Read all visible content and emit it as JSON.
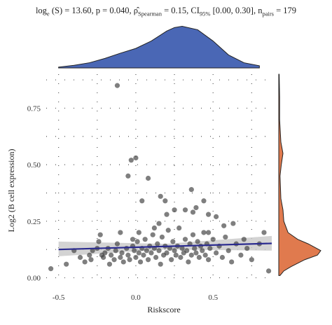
{
  "stats": {
    "log_label": "log",
    "log_sub": "e",
    "S_part": " (S) = 13.60, p = 0.040, ",
    "rho_sub": "Spearman",
    "rho_val": " = 0.15, CI",
    "ci_sub": "95%",
    "ci_val": " [0.00, 0.30], n",
    "n_sub": "pairs",
    "n_val": " = 179"
  },
  "chart_data": {
    "type": "scatter",
    "title": "",
    "xlabel": "Riskscore",
    "ylabel": "Log2 (B cell expression)",
    "xlim": [
      -0.58,
      0.88
    ],
    "ylim": [
      -0.02,
      0.9
    ],
    "x_ticks": [
      -0.5,
      0.0,
      0.5
    ],
    "x_tick_labels": [
      "-0.5",
      "0.0",
      "0.5"
    ],
    "y_ticks": [
      0.0,
      0.25,
      0.5,
      0.75
    ],
    "y_tick_labels": [
      "0.00",
      "0.25",
      "0.50",
      "0.75"
    ],
    "grid": true,
    "regression": {
      "x": [
        -0.5,
        0.88
      ],
      "y": [
        0.125,
        0.152
      ],
      "ci_low_left": 0.095,
      "ci_high_left": 0.16,
      "ci_low_mid": 0.125,
      "ci_high_mid": 0.15,
      "ci_low_right": 0.12,
      "ci_high_right": 0.185
    },
    "marginal_x_density": {
      "x": [
        -0.5,
        -0.4,
        -0.3,
        -0.2,
        -0.1,
        0.0,
        0.1,
        0.2,
        0.25,
        0.3,
        0.4,
        0.5,
        0.6,
        0.7,
        0.8
      ],
      "y": [
        0.02,
        0.06,
        0.12,
        0.22,
        0.34,
        0.45,
        0.62,
        0.85,
        0.93,
        0.96,
        0.88,
        0.62,
        0.3,
        0.12,
        0.05
      ]
    },
    "marginal_y_density": {
      "y": [
        0.9,
        0.8,
        0.7,
        0.6,
        0.55,
        0.5,
        0.45,
        0.4,
        0.35,
        0.3,
        0.25,
        0.2,
        0.17,
        0.15,
        0.12,
        0.1,
        0.08,
        0.05,
        0.03,
        0.01
      ],
      "d": [
        0.01,
        0.02,
        0.02,
        0.05,
        0.1,
        0.06,
        0.03,
        0.04,
        0.05,
        0.1,
        0.12,
        0.22,
        0.45,
        0.7,
        1.0,
        0.92,
        0.62,
        0.3,
        0.12,
        0.03
      ]
    },
    "points": [
      {
        "x": -0.55,
        "y": 0.04
      },
      {
        "x": -0.45,
        "y": 0.06
      },
      {
        "x": -0.4,
        "y": 0.12
      },
      {
        "x": -0.36,
        "y": 0.09
      },
      {
        "x": -0.33,
        "y": 0.07
      },
      {
        "x": -0.3,
        "y": 0.1
      },
      {
        "x": -0.29,
        "y": 0.08
      },
      {
        "x": -0.25,
        "y": 0.13
      },
      {
        "x": -0.24,
        "y": 0.16
      },
      {
        "x": -0.22,
        "y": 0.1
      },
      {
        "x": -0.21,
        "y": 0.09
      },
      {
        "x": -0.2,
        "y": 0.11
      },
      {
        "x": -0.18,
        "y": 0.13
      },
      {
        "x": -0.17,
        "y": 0.06
      },
      {
        "x": -0.16,
        "y": 0.1
      },
      {
        "x": -0.14,
        "y": 0.08
      },
      {
        "x": -0.13,
        "y": 0.12
      },
      {
        "x": -0.12,
        "y": 0.15
      },
      {
        "x": -0.1,
        "y": 0.09
      },
      {
        "x": -0.09,
        "y": 0.11
      },
      {
        "x": -0.08,
        "y": 0.07
      },
      {
        "x": -0.06,
        "y": 0.13
      },
      {
        "x": -0.05,
        "y": 0.1
      },
      {
        "x": -0.04,
        "y": 0.08
      },
      {
        "x": -0.02,
        "y": 0.14
      },
      {
        "x": -0.01,
        "y": 0.12
      },
      {
        "x": 0.0,
        "y": 0.09
      },
      {
        "x": 0.01,
        "y": 0.16
      },
      {
        "x": 0.02,
        "y": 0.11
      },
      {
        "x": 0.03,
        "y": 0.07
      },
      {
        "x": 0.04,
        "y": 0.13
      },
      {
        "x": 0.05,
        "y": 0.1
      },
      {
        "x": 0.06,
        "y": 0.17
      },
      {
        "x": 0.07,
        "y": 0.12
      },
      {
        "x": 0.08,
        "y": 0.08
      },
      {
        "x": 0.09,
        "y": 0.14
      },
      {
        "x": 0.1,
        "y": 0.11
      },
      {
        "x": 0.11,
        "y": 0.19
      },
      {
        "x": 0.12,
        "y": 0.13
      },
      {
        "x": 0.13,
        "y": 0.09
      },
      {
        "x": 0.14,
        "y": 0.15
      },
      {
        "x": 0.15,
        "y": 0.12
      },
      {
        "x": 0.16,
        "y": 0.06
      },
      {
        "x": 0.17,
        "y": 0.18
      },
      {
        "x": 0.18,
        "y": 0.1
      },
      {
        "x": 0.19,
        "y": 0.14
      },
      {
        "x": 0.2,
        "y": 0.11
      },
      {
        "x": 0.21,
        "y": 0.21
      },
      {
        "x": 0.22,
        "y": 0.13
      },
      {
        "x": 0.23,
        "y": 0.08
      },
      {
        "x": 0.24,
        "y": 0.16
      },
      {
        "x": 0.25,
        "y": 0.12
      },
      {
        "x": 0.26,
        "y": 0.1
      },
      {
        "x": 0.27,
        "y": 0.14
      },
      {
        "x": 0.28,
        "y": 0.22
      },
      {
        "x": 0.29,
        "y": 0.09
      },
      {
        "x": 0.3,
        "y": 0.13
      },
      {
        "x": 0.31,
        "y": 0.11
      },
      {
        "x": 0.32,
        "y": 0.17
      },
      {
        "x": 0.33,
        "y": 0.12
      },
      {
        "x": 0.34,
        "y": 0.07
      },
      {
        "x": 0.35,
        "y": 0.15
      },
      {
        "x": 0.36,
        "y": 0.1
      },
      {
        "x": 0.37,
        "y": 0.19
      },
      {
        "x": 0.38,
        "y": 0.13
      },
      {
        "x": 0.39,
        "y": 0.11
      },
      {
        "x": 0.4,
        "y": 0.16
      },
      {
        "x": 0.41,
        "y": 0.09
      },
      {
        "x": 0.42,
        "y": 0.14
      },
      {
        "x": 0.43,
        "y": 0.12
      },
      {
        "x": 0.44,
        "y": 0.2
      },
      {
        "x": 0.45,
        "y": 0.1
      },
      {
        "x": 0.46,
        "y": 0.15
      },
      {
        "x": 0.47,
        "y": 0.08
      },
      {
        "x": 0.48,
        "y": 0.13
      },
      {
        "x": 0.5,
        "y": 0.17
      },
      {
        "x": 0.52,
        "y": 0.11
      },
      {
        "x": 0.54,
        "y": 0.14
      },
      {
        "x": 0.56,
        "y": 0.09
      },
      {
        "x": 0.58,
        "y": 0.18
      },
      {
        "x": 0.6,
        "y": 0.12
      },
      {
        "x": 0.62,
        "y": 0.07
      },
      {
        "x": 0.65,
        "y": 0.15
      },
      {
        "x": 0.68,
        "y": 0.1
      },
      {
        "x": 0.72,
        "y": 0.13
      },
      {
        "x": 0.75,
        "y": 0.08
      },
      {
        "x": 0.8,
        "y": 0.15
      },
      {
        "x": 0.83,
        "y": 0.2
      },
      {
        "x": 0.86,
        "y": 0.03
      },
      {
        "x": -0.12,
        "y": 0.85
      },
      {
        "x": -0.05,
        "y": 0.45
      },
      {
        "x": -0.03,
        "y": 0.52
      },
      {
        "x": 0.0,
        "y": 0.53
      },
      {
        "x": 0.04,
        "y": 0.34
      },
      {
        "x": 0.08,
        "y": 0.44
      },
      {
        "x": 0.16,
        "y": 0.36
      },
      {
        "x": 0.19,
        "y": 0.34
      },
      {
        "x": 0.2,
        "y": 0.28
      },
      {
        "x": 0.25,
        "y": 0.3
      },
      {
        "x": 0.32,
        "y": 0.3
      },
      {
        "x": 0.36,
        "y": 0.39
      },
      {
        "x": 0.37,
        "y": 0.29
      },
      {
        "x": 0.39,
        "y": 0.31
      },
      {
        "x": 0.44,
        "y": 0.34
      },
      {
        "x": 0.47,
        "y": 0.28
      },
      {
        "x": 0.47,
        "y": 0.2
      },
      {
        "x": 0.52,
        "y": 0.27
      },
      {
        "x": 0.57,
        "y": 0.23
      },
      {
        "x": 0.63,
        "y": 0.24
      },
      {
        "x": 0.7,
        "y": 0.17
      },
      {
        "x": -0.28,
        "y": 0.12
      },
      {
        "x": -0.23,
        "y": 0.19
      },
      {
        "x": -0.1,
        "y": 0.2
      },
      {
        "x": -0.02,
        "y": 0.17
      },
      {
        "x": 0.02,
        "y": 0.2
      },
      {
        "x": 0.12,
        "y": 0.22
      },
      {
        "x": 0.15,
        "y": 0.24
      }
    ],
    "point_color": "#3a3a3a",
    "line_color": "#2a2a8f",
    "ci_color": "#c8c8c8",
    "top_density_color": "#4a67b5",
    "right_density_color": "#e07a4e"
  }
}
